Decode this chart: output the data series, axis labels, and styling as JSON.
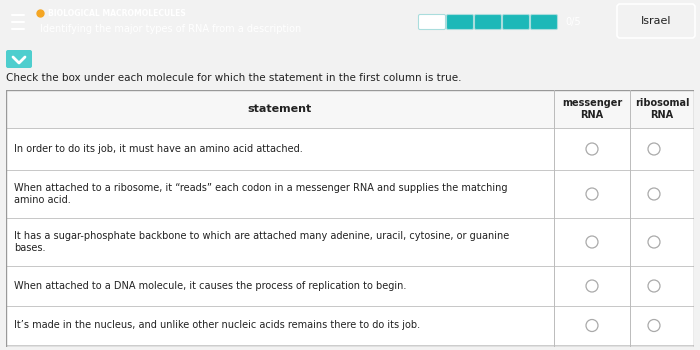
{
  "title_topic": "BIOLOGICAL MACROMOLECULES",
  "title_sub": "Identifying the major types of RNA from a description",
  "score": "0/5",
  "user": "Israel",
  "instruction": "Check the box under each molecule for which the statement in the first column is true.",
  "header_col0": "statement",
  "header_col1": "messenger\nRNA",
  "header_col2": "ribosomal\nRNA",
  "rows": [
    "In order to do its job, it must have an amino acid attached.",
    "When attached to a ribosome, it “reads” each codon in a messenger RNA and supplies the matching\namino acid.",
    "It has a sugar-phosphate backbone to which are attached many adenine, uracil, cytosine, or guanine\nbases.",
    "When attached to a DNA molecule, it causes the process of replication to begin.",
    "It’s made in the nucleus, and unlike other nucleic acids remains there to do its job."
  ],
  "top_bar_bg": "#1db8b8",
  "topic_color": "#f5a623",
  "body_bg": "#f2f2f2",
  "table_bg": "#ffffff",
  "table_header_bg": "#f7f7f7",
  "table_border": "#bbbbbb",
  "chevron_bg": "#4ecece",
  "israel_btn_bg": "#f2f2f2",
  "israel_btn_border": "#dddddd",
  "text_dark": "#222222",
  "text_white": "#ffffff",
  "checkbox_color": "#aaaaaa",
  "progress_empty_color": "#1db8b8",
  "progress_border_color": "#aadddd"
}
